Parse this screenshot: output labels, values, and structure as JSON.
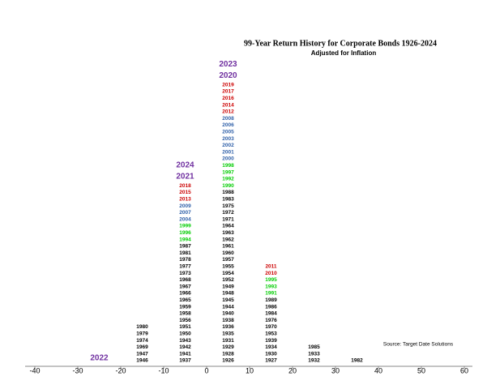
{
  "chart_data": {
    "type": "yearstack",
    "title": "99-Year Return History for Corporate Bonds  1926-2024",
    "subtitle": "Adjusted for Inflation",
    "source": "Source: Target Date Solutions",
    "highlight_color": "#7030a0",
    "xlim": [
      -40,
      60
    ],
    "xticks": [
      -40,
      -30,
      -20,
      -10,
      0,
      10,
      20,
      30,
      40,
      50,
      60
    ],
    "bins": [
      -30,
      -20,
      -10,
      0,
      10,
      20,
      30,
      40
    ],
    "columns": [
      [
        {
          "year": "2022",
          "color": "#7030a0"
        }
      ],
      [
        {
          "year": "1946",
          "color": "#000000"
        },
        {
          "year": "1947",
          "color": "#000000"
        },
        {
          "year": "1969",
          "color": "#000000"
        },
        {
          "year": "1974",
          "color": "#000000"
        },
        {
          "year": "1979",
          "color": "#000000"
        },
        {
          "year": "1980",
          "color": "#000000"
        }
      ],
      [
        {
          "year": "1937",
          "color": "#000000"
        },
        {
          "year": "1941",
          "color": "#000000"
        },
        {
          "year": "1942",
          "color": "#000000"
        },
        {
          "year": "1943",
          "color": "#000000"
        },
        {
          "year": "1950",
          "color": "#000000"
        },
        {
          "year": "1951",
          "color": "#000000"
        },
        {
          "year": "1956",
          "color": "#000000"
        },
        {
          "year": "1958",
          "color": "#000000"
        },
        {
          "year": "1959",
          "color": "#000000"
        },
        {
          "year": "1965",
          "color": "#000000"
        },
        {
          "year": "1966",
          "color": "#000000"
        },
        {
          "year": "1967",
          "color": "#000000"
        },
        {
          "year": "1968",
          "color": "#000000"
        },
        {
          "year": "1973",
          "color": "#000000"
        },
        {
          "year": "1977",
          "color": "#000000"
        },
        {
          "year": "1978",
          "color": "#000000"
        },
        {
          "year": "1981",
          "color": "#000000"
        },
        {
          "year": "1987",
          "color": "#000000"
        },
        {
          "year": "1994",
          "color": "#00cc00"
        },
        {
          "year": "1996",
          "color": "#00cc00"
        },
        {
          "year": "1999",
          "color": "#00cc00"
        },
        {
          "year": "2004",
          "color": "#2e5fa8"
        },
        {
          "year": "2007",
          "color": "#2e5fa8"
        },
        {
          "year": "2009",
          "color": "#2e5fa8"
        },
        {
          "year": "2013",
          "color": "#cc0000"
        },
        {
          "year": "2015",
          "color": "#cc0000"
        },
        {
          "year": "2018",
          "color": "#cc0000"
        },
        {
          "year": "2021",
          "color": "#7030a0"
        },
        {
          "year": "2024",
          "color": "#7030a0"
        }
      ],
      [
        {
          "year": "1926",
          "color": "#000000"
        },
        {
          "year": "1928",
          "color": "#000000"
        },
        {
          "year": "1929",
          "color": "#000000"
        },
        {
          "year": "1931",
          "color": "#000000"
        },
        {
          "year": "1935",
          "color": "#000000"
        },
        {
          "year": "1936",
          "color": "#000000"
        },
        {
          "year": "1938",
          "color": "#000000"
        },
        {
          "year": "1940",
          "color": "#000000"
        },
        {
          "year": "1944",
          "color": "#000000"
        },
        {
          "year": "1945",
          "color": "#000000"
        },
        {
          "year": "1948",
          "color": "#000000"
        },
        {
          "year": "1949",
          "color": "#000000"
        },
        {
          "year": "1952",
          "color": "#000000"
        },
        {
          "year": "1954",
          "color": "#000000"
        },
        {
          "year": "1955",
          "color": "#000000"
        },
        {
          "year": "1957",
          "color": "#000000"
        },
        {
          "year": "1960",
          "color": "#000000"
        },
        {
          "year": "1961",
          "color": "#000000"
        },
        {
          "year": "1962",
          "color": "#000000"
        },
        {
          "year": "1963",
          "color": "#000000"
        },
        {
          "year": "1964",
          "color": "#000000"
        },
        {
          "year": "1971",
          "color": "#000000"
        },
        {
          "year": "1972",
          "color": "#000000"
        },
        {
          "year": "1975",
          "color": "#000000"
        },
        {
          "year": "1983",
          "color": "#000000"
        },
        {
          "year": "1988",
          "color": "#000000"
        },
        {
          "year": "1990",
          "color": "#00cc00"
        },
        {
          "year": "1992",
          "color": "#00cc00"
        },
        {
          "year": "1997",
          "color": "#00cc00"
        },
        {
          "year": "1998",
          "color": "#00cc00"
        },
        {
          "year": "2000",
          "color": "#2e5fa8"
        },
        {
          "year": "2001",
          "color": "#2e5fa8"
        },
        {
          "year": "2002",
          "color": "#2e5fa8"
        },
        {
          "year": "2003",
          "color": "#2e5fa8"
        },
        {
          "year": "2005",
          "color": "#2e5fa8"
        },
        {
          "year": "2006",
          "color": "#2e5fa8"
        },
        {
          "year": "2008",
          "color": "#2e5fa8"
        },
        {
          "year": "2012",
          "color": "#cc0000"
        },
        {
          "year": "2014",
          "color": "#cc0000"
        },
        {
          "year": "2016",
          "color": "#cc0000"
        },
        {
          "year": "2017",
          "color": "#cc0000"
        },
        {
          "year": "2019",
          "color": "#cc0000"
        },
        {
          "year": "2020",
          "color": "#7030a0"
        },
        {
          "year": "2023",
          "color": "#7030a0"
        }
      ],
      [
        {
          "year": "1927",
          "color": "#000000"
        },
        {
          "year": "1930",
          "color": "#000000"
        },
        {
          "year": "1934",
          "color": "#000000"
        },
        {
          "year": "1939",
          "color": "#000000"
        },
        {
          "year": "1953",
          "color": "#000000"
        },
        {
          "year": "1970",
          "color": "#000000"
        },
        {
          "year": "1976",
          "color": "#000000"
        },
        {
          "year": "1984",
          "color": "#000000"
        },
        {
          "year": "1986",
          "color": "#000000"
        },
        {
          "year": "1989",
          "color": "#000000"
        },
        {
          "year": "1991",
          "color": "#00cc00"
        },
        {
          "year": "1993",
          "color": "#00cc00"
        },
        {
          "year": "1995",
          "color": "#00cc00"
        },
        {
          "year": "2010",
          "color": "#cc0000"
        },
        {
          "year": "2011",
          "color": "#cc0000"
        }
      ],
      [
        {
          "year": "1932",
          "color": "#000000"
        },
        {
          "year": "1933",
          "color": "#000000"
        },
        {
          "year": "1985",
          "color": "#000000"
        }
      ],
      [
        {
          "year": "1982",
          "color": "#000000"
        }
      ]
    ]
  }
}
